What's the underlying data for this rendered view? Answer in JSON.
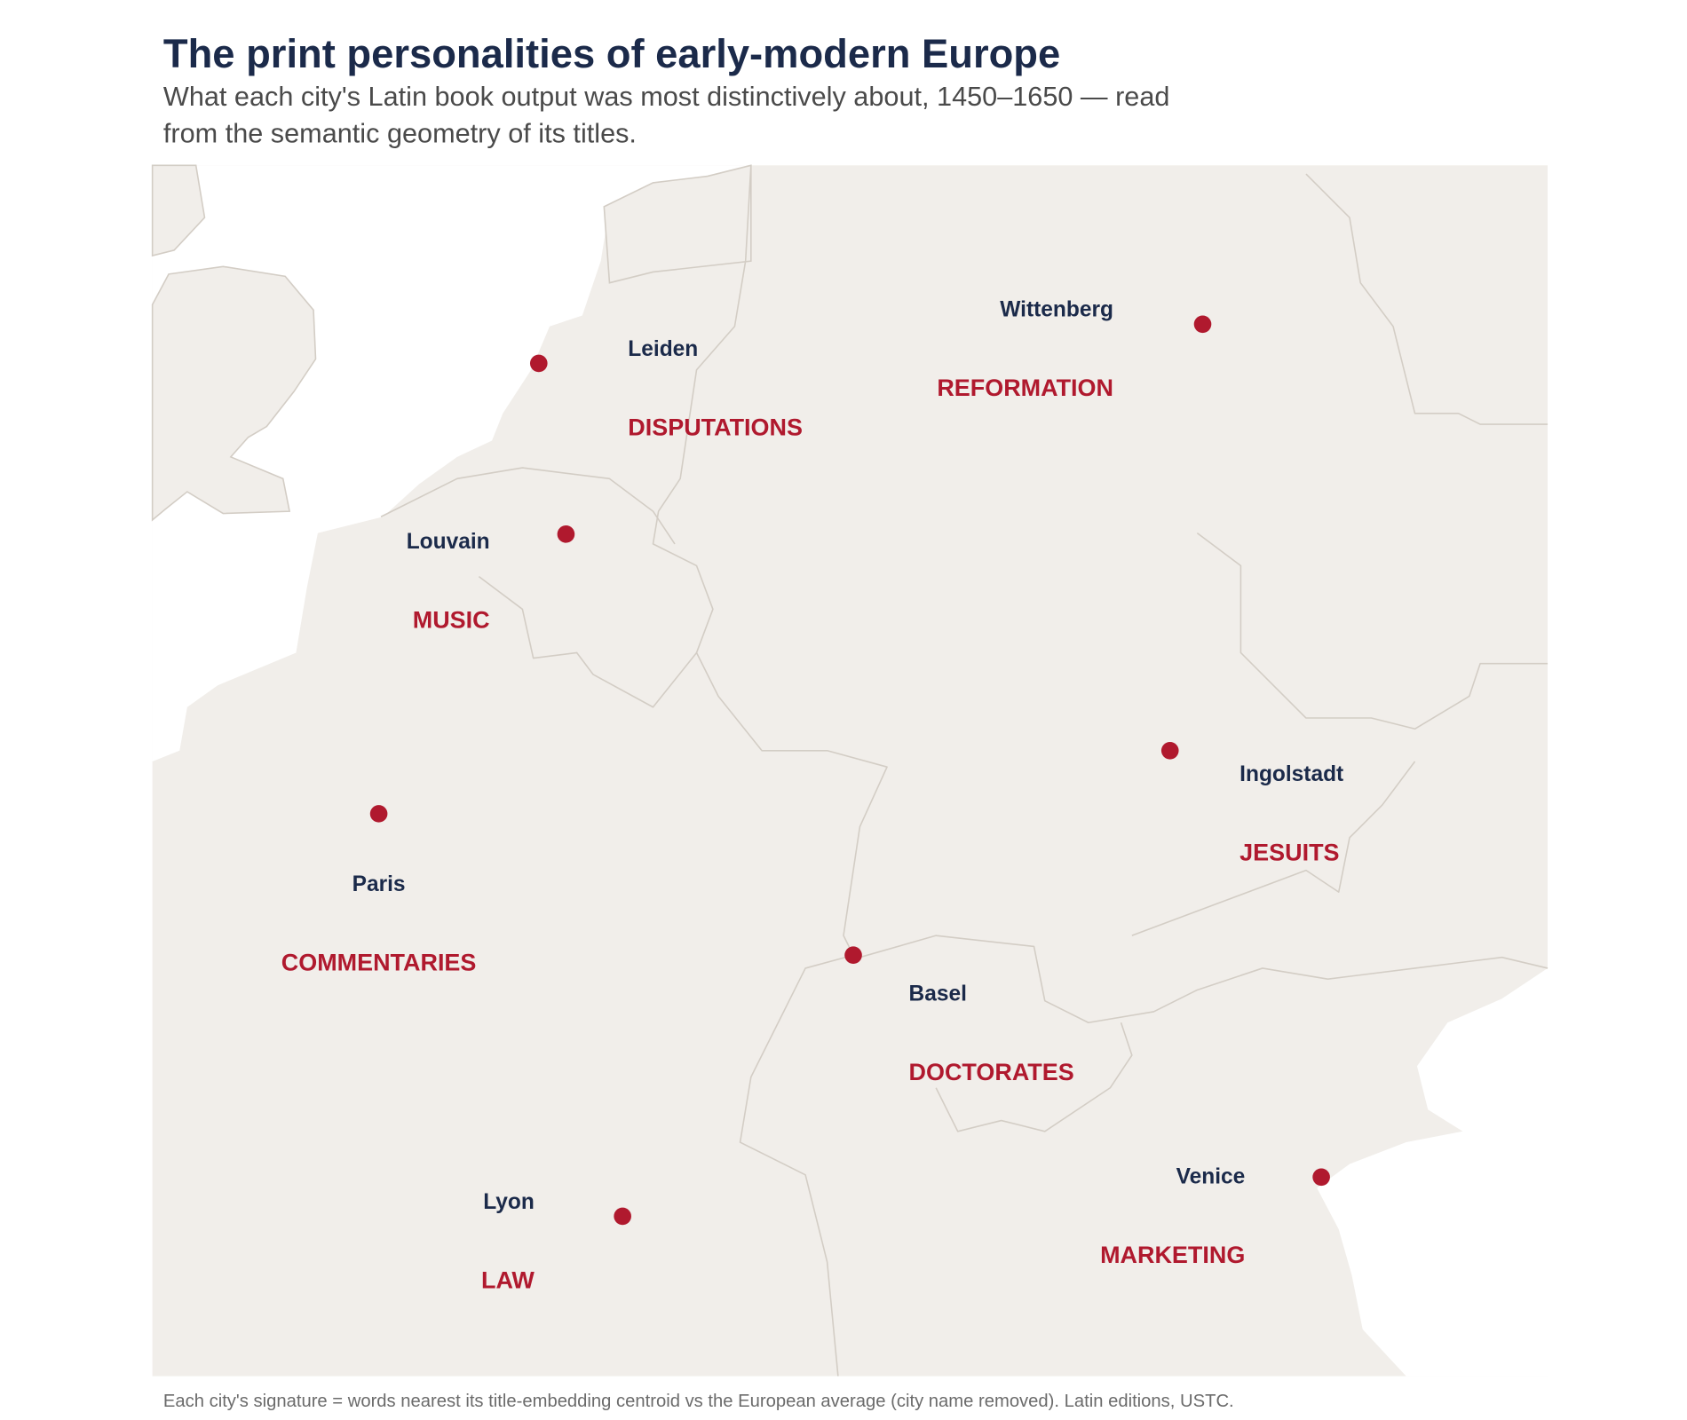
{
  "header": {
    "title": "The print personalities of early-modern Europe",
    "subtitle": "What each city's Latin book output was most distinctively about, 1450–1650 — read from the semantic geometry of its titles."
  },
  "cities": [
    {
      "name": "Leiden",
      "signature": "DISPUTATIONS"
    },
    {
      "name": "Wittenberg",
      "signature": "REFORMATION"
    },
    {
      "name": "Louvain",
      "signature": "MUSIC"
    },
    {
      "name": "Paris",
      "signature": "COMMENTARIES"
    },
    {
      "name": "Ingolstadt",
      "signature": "JESUITS"
    },
    {
      "name": "Basel",
      "signature": "DOCTORATES"
    },
    {
      "name": "Lyon",
      "signature": "LAW"
    },
    {
      "name": "Venice",
      "signature": "MARKETING"
    }
  ],
  "footnote": "Each city's signature = words nearest its title-embedding centroid vs the European average (city name removed). Latin editions, USTC."
}
